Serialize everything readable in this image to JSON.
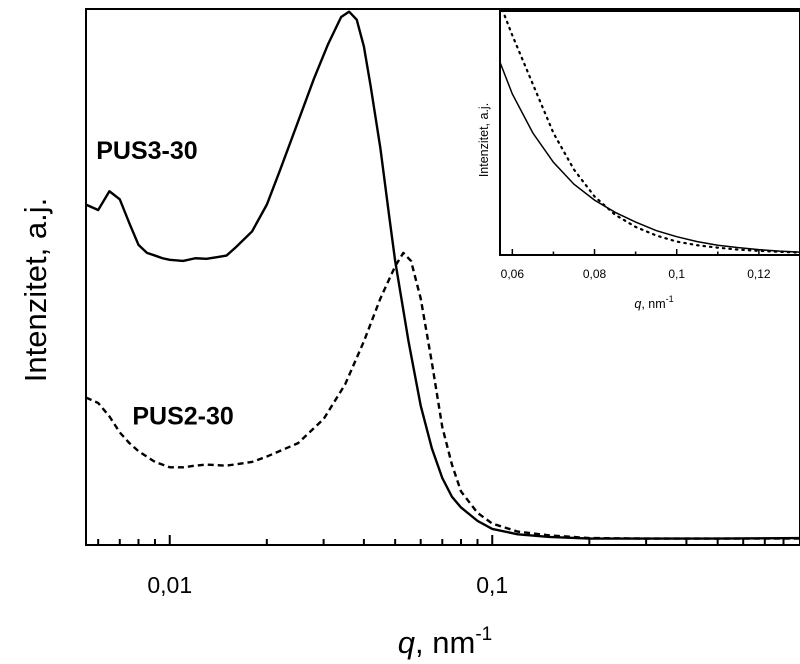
{
  "chart_data": [
    {
      "type": "line",
      "xscale": "log",
      "xlim": [
        0.0055,
        0.9
      ],
      "ylim": [
        0,
        1
      ],
      "xlabel": "q, nm",
      "xlabel_italic_part": "q",
      "xlabel_rest": ", nm",
      "xlabel_superscript": "-1",
      "ylabel": "Intenzitet, a.j.",
      "xtick_labels": [
        {
          "value": 0.01,
          "label": "0,01"
        },
        {
          "value": 0.1,
          "label": "0,1"
        }
      ],
      "yticks_labeled": false,
      "series": [
        {
          "name": "PUS3-30",
          "style": "solid",
          "color": "#000000",
          "x": [
            0.0055,
            0.006,
            0.0065,
            0.007,
            0.0075,
            0.008,
            0.0085,
            0.009,
            0.0095,
            0.01,
            0.011,
            0.012,
            0.013,
            0.014,
            0.015,
            0.016,
            0.018,
            0.02,
            0.022,
            0.025,
            0.028,
            0.031,
            0.034,
            0.036,
            0.038,
            0.04,
            0.042,
            0.045,
            0.048,
            0.05,
            0.055,
            0.06,
            0.065,
            0.07,
            0.075,
            0.08,
            0.09,
            0.1,
            0.12,
            0.15,
            0.2,
            0.3,
            0.5,
            0.9
          ],
          "y": [
            0.635,
            0.625,
            0.66,
            0.645,
            0.6,
            0.56,
            0.545,
            0.54,
            0.535,
            0.532,
            0.53,
            0.535,
            0.534,
            0.537,
            0.54,
            0.555,
            0.585,
            0.635,
            0.7,
            0.79,
            0.87,
            0.935,
            0.985,
            0.995,
            0.98,
            0.93,
            0.855,
            0.74,
            0.61,
            0.53,
            0.38,
            0.26,
            0.18,
            0.125,
            0.09,
            0.07,
            0.045,
            0.03,
            0.02,
            0.015,
            0.012,
            0.012,
            0.012,
            0.013
          ]
        },
        {
          "name": "PUS2-30",
          "style": "dashed",
          "color": "#000000",
          "x": [
            0.0055,
            0.006,
            0.0065,
            0.007,
            0.0075,
            0.008,
            0.009,
            0.01,
            0.011,
            0.012,
            0.013,
            0.015,
            0.018,
            0.02,
            0.025,
            0.03,
            0.035,
            0.04,
            0.045,
            0.05,
            0.053,
            0.056,
            0.06,
            0.065,
            0.07,
            0.075,
            0.08,
            0.09,
            0.1,
            0.12,
            0.15,
            0.2,
            0.3,
            0.5,
            0.9
          ],
          "y": [
            0.275,
            0.265,
            0.24,
            0.21,
            0.19,
            0.175,
            0.155,
            0.145,
            0.145,
            0.148,
            0.15,
            0.148,
            0.155,
            0.165,
            0.19,
            0.235,
            0.3,
            0.38,
            0.46,
            0.52,
            0.545,
            0.53,
            0.46,
            0.34,
            0.22,
            0.15,
            0.1,
            0.06,
            0.04,
            0.025,
            0.018,
            0.013,
            0.012,
            0.012,
            0.012
          ]
        }
      ],
      "annotations": [
        {
          "text": "PUS3-30",
          "x": 0.0085,
          "y": 0.72
        },
        {
          "text": "PUS2-30",
          "x": 0.011,
          "y": 0.225
        }
      ]
    },
    {
      "type": "line",
      "inset": true,
      "xlim": [
        0.057,
        0.13
      ],
      "ylim": [
        0,
        1
      ],
      "xlabel_italic_part": "q",
      "xlabel_rest": ", nm",
      "xlabel_superscript": "-1",
      "ylabel": "Intenzitet, a.j.",
      "xtick_labels": [
        {
          "value": 0.06,
          "label": "0,06"
        },
        {
          "value": 0.08,
          "label": "0,08"
        },
        {
          "value": 0.1,
          "label": "0,1"
        },
        {
          "value": 0.12,
          "label": "0,12"
        }
      ],
      "series": [
        {
          "style": "solid",
          "color": "#000000",
          "x": [
            0.057,
            0.06,
            0.065,
            0.07,
            0.075,
            0.08,
            0.085,
            0.09,
            0.095,
            0.1,
            0.105,
            0.11,
            0.115,
            0.12,
            0.125,
            0.13
          ],
          "y": [
            0.79,
            0.66,
            0.5,
            0.38,
            0.29,
            0.225,
            0.175,
            0.135,
            0.1,
            0.075,
            0.055,
            0.04,
            0.03,
            0.022,
            0.016,
            0.012
          ]
        },
        {
          "style": "dotted",
          "color": "#000000",
          "x": [
            0.057,
            0.06,
            0.065,
            0.07,
            0.075,
            0.08,
            0.085,
            0.09,
            0.095,
            0.1,
            0.105,
            0.11,
            0.115,
            0.12,
            0.125,
            0.13
          ],
          "y": [
            1.03,
            0.9,
            0.7,
            0.5,
            0.35,
            0.24,
            0.165,
            0.115,
            0.08,
            0.055,
            0.04,
            0.03,
            0.022,
            0.017,
            0.013,
            0.01
          ]
        }
      ]
    }
  ]
}
